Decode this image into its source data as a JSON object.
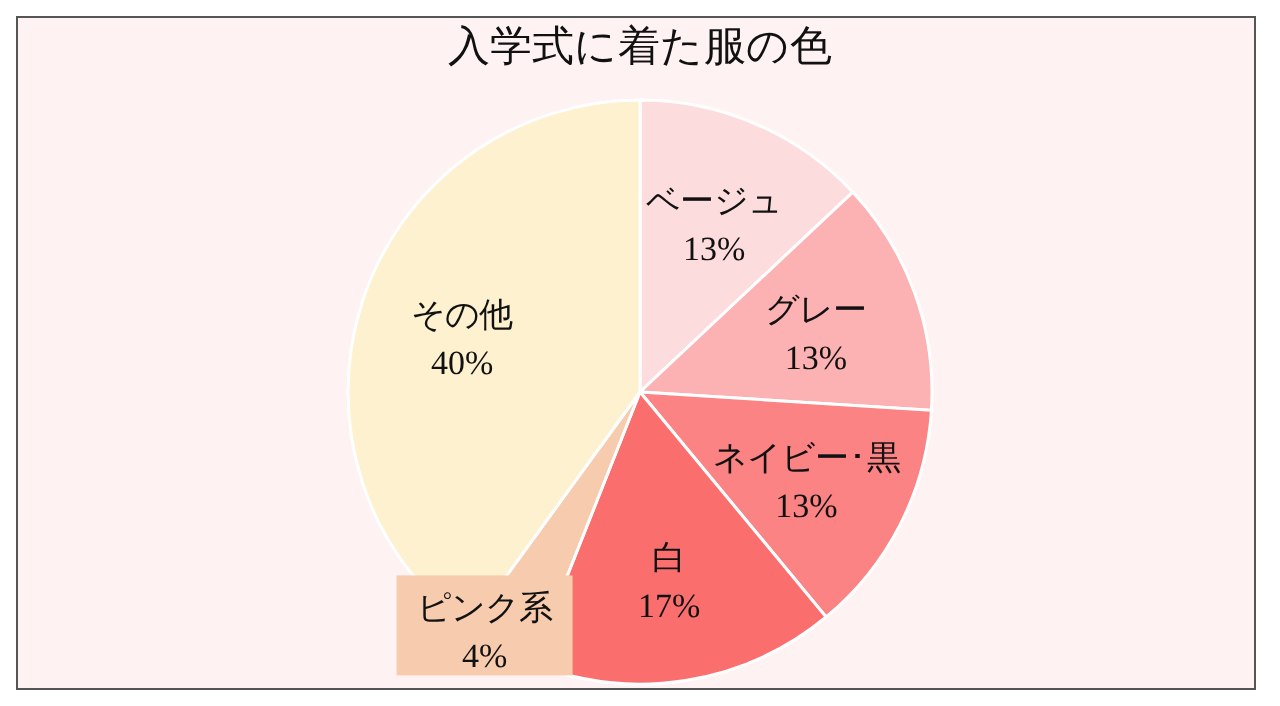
{
  "chart_data": {
    "type": "pie",
    "title": "入学式に着た服の色",
    "categories": [
      "ベージュ",
      "グレー",
      "ネイビー･黒",
      "白",
      "ピンク系",
      "その他"
    ],
    "values": [
      13,
      13,
      13,
      17,
      4,
      40
    ],
    "value_labels": [
      "13%",
      "13%",
      "13%",
      "17%",
      "4%",
      "40%"
    ],
    "colors": [
      "#fddcde",
      "#fcb1b2",
      "#fb8384",
      "#fb6e6e",
      "#f6cbae",
      "#fef1cf"
    ]
  }
}
